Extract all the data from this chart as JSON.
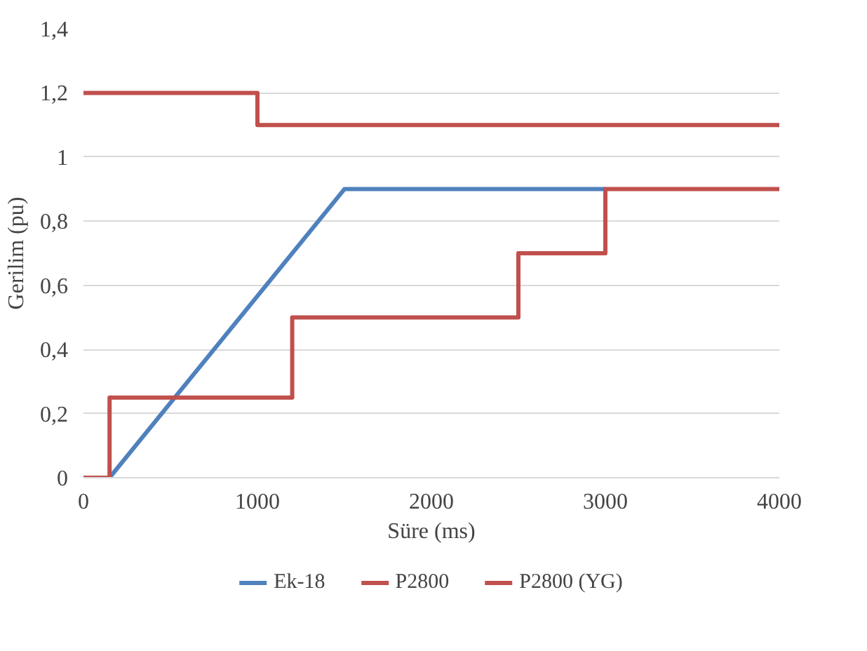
{
  "chart_data": {
    "type": "line",
    "xlabel": "Süre (ms)",
    "ylabel": "Gerilim (pu)",
    "xlim": [
      0,
      4000
    ],
    "xticks": [
      0,
      1000,
      2000,
      3000,
      4000
    ],
    "ylim": [
      0,
      1.4
    ],
    "yticks": [
      0,
      {
        "value": 0.2,
        "label": "0,2"
      },
      {
        "value": 0.4,
        "label": "0,4"
      },
      {
        "value": 0.6,
        "label": "0,6"
      },
      {
        "value": 0.8,
        "label": "0,8"
      },
      1,
      {
        "value": 1.2,
        "label": "1,2"
      },
      {
        "value": 1.4,
        "label": "1,4"
      }
    ],
    "grid": "y",
    "legend": "bottom",
    "line_style": "solid",
    "series": [
      {
        "name": "Ek-18",
        "color": "#4f81bd",
        "x": [
          150,
          1500,
          3000
        ],
        "values": [
          0,
          0.9,
          0.9
        ]
      },
      {
        "name": "P2800",
        "type": "step",
        "color": "#c0504d",
        "x": [
          0,
          150,
          1200,
          2500,
          3000,
          4000
        ],
        "values": [
          0,
          0.25,
          0.5,
          0.7,
          0.9,
          0.9
        ]
      },
      {
        "name": "P2800 (YG)",
        "type": "step",
        "color": "#c0504d",
        "x": [
          0,
          1000,
          4000
        ],
        "values": [
          1.2,
          1.1,
          1.1
        ]
      }
    ]
  }
}
